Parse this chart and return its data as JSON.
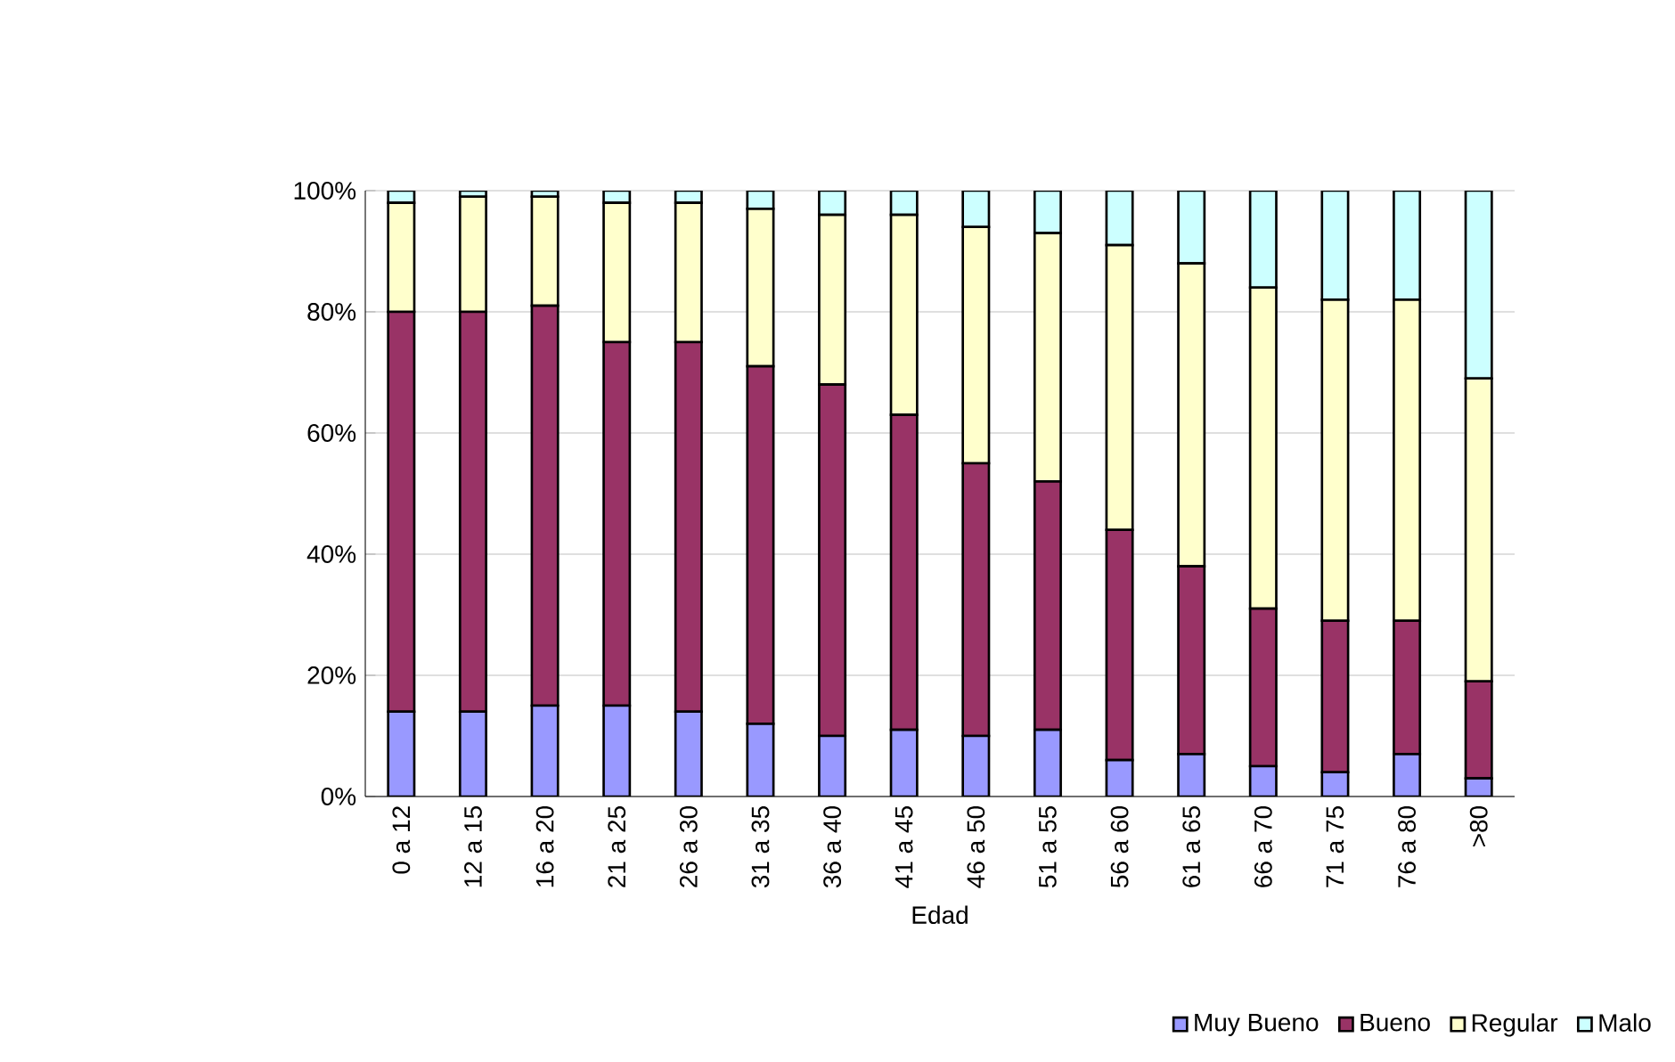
{
  "chart_data": {
    "type": "bar",
    "stacked": true,
    "xlabel": "Edad",
    "categories": [
      "0 a 12",
      "12 a 15",
      "16 a 20",
      "21 a 25",
      "26 a 30",
      "31 a 35",
      "36 a 40",
      "41 a 45",
      "46 a 50",
      "51 a 55",
      "56 a 60",
      "61 a 65",
      "66 a 70",
      "71 a 75",
      "76 a 80",
      ">80"
    ],
    "series": [
      {
        "name": "Muy Bueno",
        "color": "#9999ff",
        "values": [
          14,
          14,
          15,
          15,
          14,
          12,
          10,
          11,
          10,
          11,
          6,
          7,
          5,
          4,
          7,
          3
        ]
      },
      {
        "name": "Bueno",
        "color": "#993366",
        "values": [
          66,
          66,
          66,
          60,
          61,
          59,
          58,
          52,
          45,
          41,
          38,
          31,
          26,
          25,
          22,
          16
        ]
      },
      {
        "name": "Regular",
        "color": "#ffffcc",
        "values": [
          18,
          19,
          18,
          23,
          23,
          26,
          28,
          33,
          39,
          41,
          47,
          50,
          53,
          53,
          53,
          50
        ]
      },
      {
        "name": "Malo",
        "color": "#ccffff",
        "values": [
          2,
          1,
          1,
          2,
          2,
          3,
          4,
          4,
          6,
          7,
          9,
          12,
          16,
          18,
          18,
          31
        ]
      }
    ],
    "ylim": [
      0,
      100
    ],
    "yticks": [
      {
        "value": 0,
        "label": "0%"
      },
      {
        "value": 20,
        "label": "20%"
      },
      {
        "value": 40,
        "label": "40%"
      },
      {
        "value": 60,
        "label": "60%"
      },
      {
        "value": 80,
        "label": "80%"
      },
      {
        "value": 100,
        "label": "100%"
      }
    ],
    "grid": "y",
    "legend": "bottom right"
  }
}
